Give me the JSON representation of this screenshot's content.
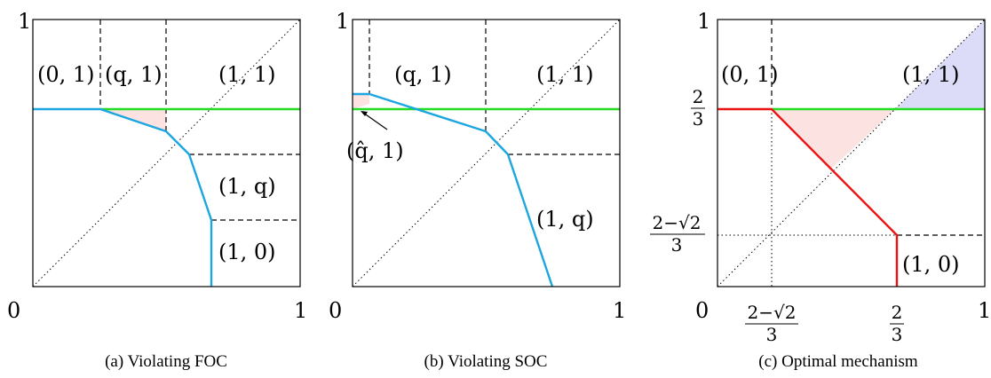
{
  "panels": [
    {
      "caption": "(a) Violating FOC",
      "corner_top": "1",
      "corner_origin": "0",
      "corner_right": "1",
      "regions": [
        "(0, 1)",
        "(q, 1)",
        "(1, 1)",
        "(1, q)",
        "(1, 0)"
      ]
    },
    {
      "caption": "(b) Violating SOC",
      "corner_top": "1",
      "corner_origin": "0",
      "corner_right": "1",
      "regions": [
        "(q, 1)",
        "(1, 1)",
        "(q̂, 1)",
        "(1, q)"
      ]
    },
    {
      "caption": "(c) Optimal mechanism",
      "corner_top": "1",
      "corner_origin": "0",
      "corner_right": "1",
      "regions": [
        "(0, 1)",
        "(1, 1)",
        "(1, 0)"
      ],
      "y_ticks": [
        {
          "num": "2",
          "den": "3"
        },
        {
          "num": "2−√2",
          "den": "3"
        }
      ],
      "x_ticks": [
        {
          "num": "2−√2",
          "den": "3"
        },
        {
          "num": "2",
          "den": "3"
        }
      ]
    }
  ],
  "colors": {
    "blue_boundary": "#1ba6e0",
    "green_line": "#22dd22",
    "red_boundary": "#ee1111",
    "pink_fill": "#fde2e2",
    "lavender_fill": "#dcdcf8"
  }
}
